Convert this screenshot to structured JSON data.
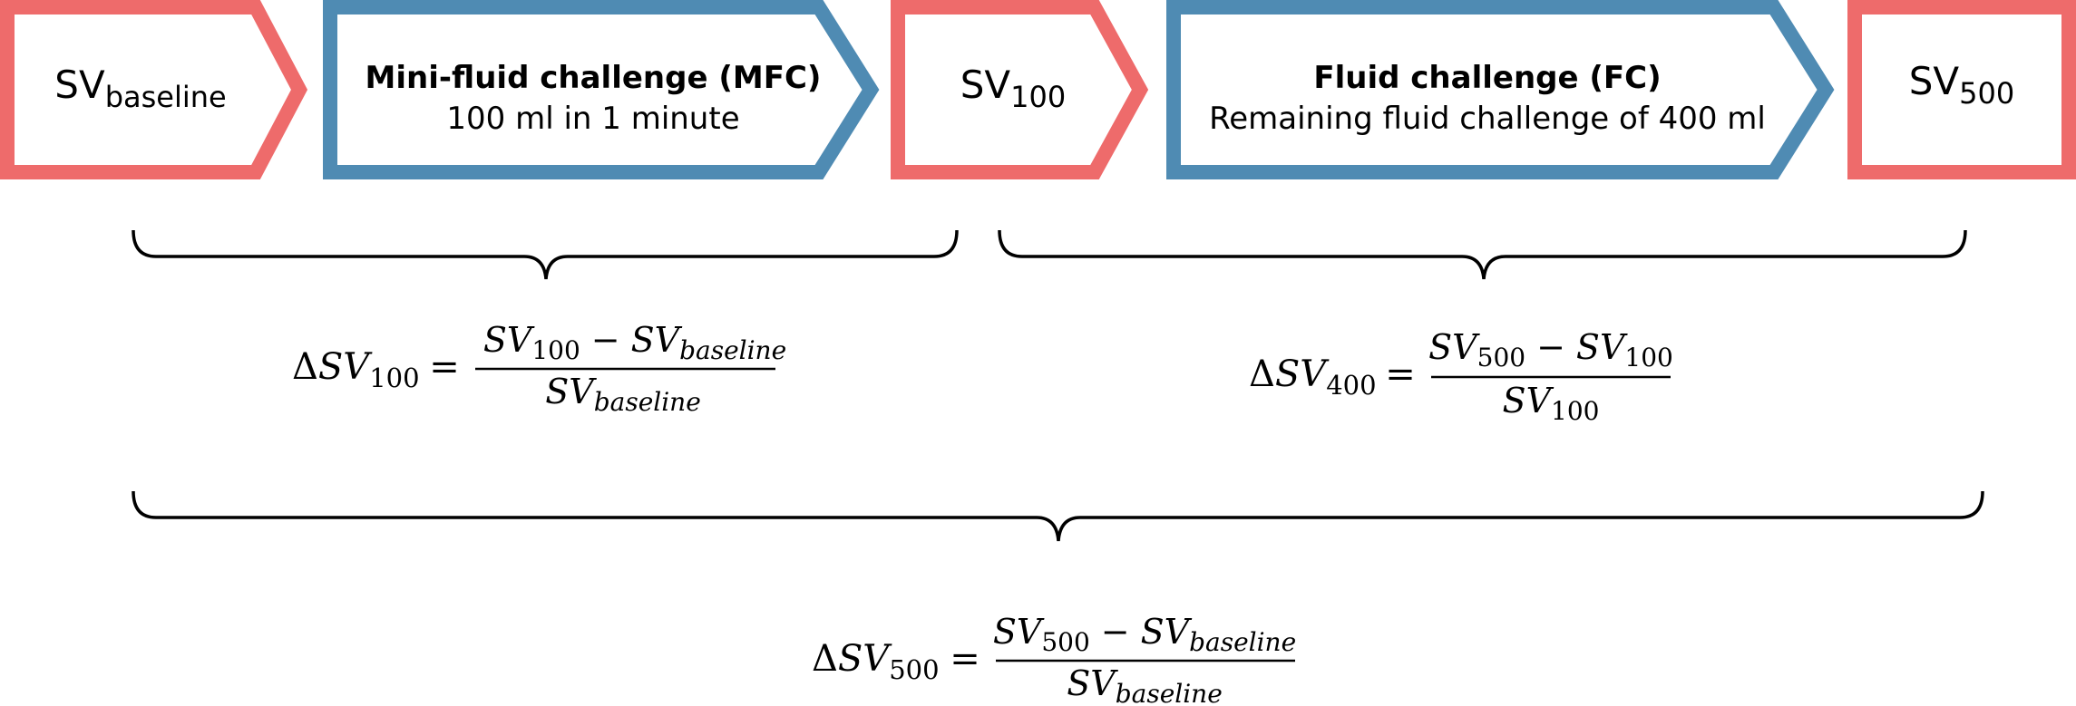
{
  "colors": {
    "measurement": "#ee6b6b",
    "fluid": "#4f8bb3",
    "text": "#000000",
    "brace": "#000000"
  },
  "boxes": {
    "sv_baseline": {
      "main": "SV",
      "sub": "baseline"
    },
    "mfc": {
      "title": "Mini-fluid challenge (MFC)",
      "detail": "100 ml in 1 minute"
    },
    "sv_100": {
      "main": "SV",
      "sub": "100"
    },
    "fc": {
      "title": "Fluid challenge (FC)",
      "detail": "Remaining fluid challenge of 400 ml"
    },
    "sv_500": {
      "main": "SV",
      "sub": "500"
    }
  },
  "formulas": {
    "dsv100": {
      "delta": "Δ",
      "sv": "SV",
      "lhs_sub": "100",
      "equals": "=",
      "minus": "−",
      "num_a_sub": "100",
      "num_b_sub": "baseline",
      "den_sub": "baseline"
    },
    "dsv400": {
      "delta": "Δ",
      "sv": "SV",
      "lhs_sub": "400",
      "equals": "=",
      "minus": "−",
      "num_a_sub": "500",
      "num_b_sub": "100",
      "den_sub": "100"
    },
    "dsv500": {
      "delta": "Δ",
      "sv": "SV",
      "lhs_sub": "500",
      "equals": "=",
      "minus": "−",
      "num_a_sub": "500",
      "num_b_sub": "baseline",
      "den_sub": "baseline"
    }
  }
}
